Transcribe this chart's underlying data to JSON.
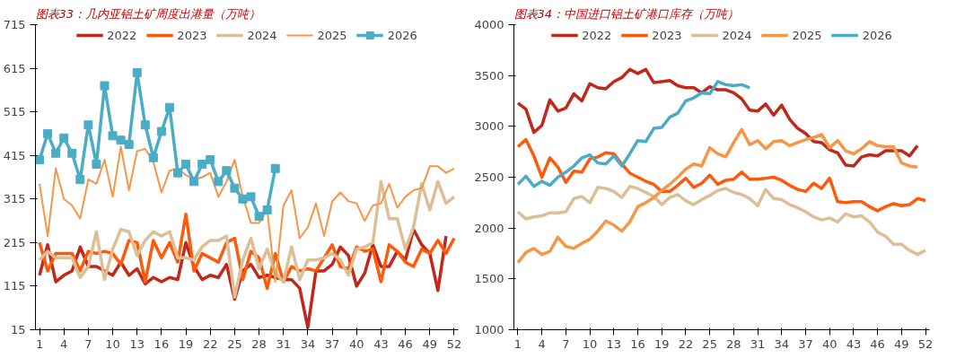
{
  "chart_data": [
    {
      "type": "line",
      "title": "图表33：几内亚铝土矿周度出港量（万吨）",
      "x": [
        1,
        2,
        3,
        4,
        5,
        6,
        7,
        8,
        9,
        10,
        11,
        12,
        13,
        14,
        15,
        16,
        17,
        18,
        19,
        20,
        21,
        22,
        23,
        24,
        25,
        26,
        27,
        28,
        29,
        30,
        31,
        32,
        33,
        34,
        35,
        36,
        37,
        38,
        39,
        40,
        41,
        42,
        43,
        44,
        45,
        46,
        47,
        48,
        49,
        50,
        51,
        52
      ],
      "xlim": [
        0.5,
        52.5
      ],
      "xticks": [
        1,
        4,
        7,
        10,
        13,
        16,
        19,
        22,
        25,
        28,
        31,
        34,
        37,
        40,
        43,
        46,
        49,
        52
      ],
      "ylim": [
        15,
        715
      ],
      "yticks": [
        15,
        115,
        215,
        315,
        415,
        515,
        615,
        715
      ],
      "legend": "top",
      "marker": "none",
      "series": [
        {
          "name": "2022",
          "color": "#c0281b",
          "values": [
            140,
            210,
            125,
            140,
            150,
            205,
            160,
            160,
            150,
            140,
            170,
            140,
            155,
            120,
            135,
            125,
            135,
            130,
            215,
            160,
            130,
            140,
            135,
            165,
            85,
            150,
            165,
            135,
            140,
            135,
            130,
            130,
            110,
            20,
            150,
            150,
            165,
            205,
            185,
            115,
            145,
            210,
            160,
            160,
            195,
            175,
            245,
            210,
            190,
            105,
            230,
            null
          ]
        },
        {
          "name": "2023",
          "color": "#ff5a0a",
          "values": [
            215,
            150,
            190,
            190,
            190,
            150,
            195,
            190,
            195,
            190,
            165,
            220,
            215,
            125,
            220,
            180,
            215,
            170,
            280,
            150,
            190,
            180,
            170,
            215,
            225,
            130,
            195,
            180,
            110,
            190,
            125,
            160,
            150,
            155,
            150,
            180,
            210,
            160,
            155,
            205,
            195,
            200,
            125,
            210,
            195,
            170,
            160,
            200,
            190,
            220,
            190,
            225
          ]
        },
        {
          "name": "2024",
          "color": "#dcbf96",
          "values": [
            175,
            195,
            180,
            180,
            180,
            135,
            160,
            240,
            130,
            200,
            245,
            240,
            185,
            220,
            240,
            230,
            240,
            180,
            180,
            175,
            205,
            220,
            220,
            230,
            90,
            175,
            225,
            155,
            200,
            145,
            125,
            205,
            130,
            175,
            175,
            180,
            190,
            175,
            140,
            200,
            205,
            215,
            355,
            270,
            270,
            200,
            250,
            350,
            290,
            355,
            305,
            320
          ]
        },
        {
          "name": "2025",
          "color": "#f79646",
          "values": [
            350,
            230,
            385,
            315,
            300,
            270,
            360,
            350,
            405,
            320,
            435,
            335,
            425,
            430,
            400,
            330,
            380,
            385,
            370,
            360,
            365,
            375,
            320,
            355,
            405,
            320,
            260,
            260,
            290,
            125,
            300,
            335,
            225,
            250,
            305,
            230,
            310,
            330,
            310,
            305,
            265,
            300,
            305,
            350,
            295,
            320,
            335,
            340,
            390,
            390,
            375,
            385
          ]
        },
        {
          "name": "2026",
          "color": "#4bacc6",
          "marker": "square",
          "values": [
            405,
            465,
            420,
            455,
            420,
            360,
            485,
            395,
            575,
            460,
            450,
            440,
            605,
            485,
            410,
            470,
            525,
            375,
            395,
            355,
            395,
            405,
            355,
            380,
            340,
            315,
            320,
            275,
            290,
            385,
            null,
            null,
            null,
            null,
            null,
            null,
            null,
            null,
            null,
            null,
            null,
            null,
            null,
            null,
            null,
            null,
            null,
            null,
            null,
            null,
            null,
            null
          ]
        }
      ]
    },
    {
      "type": "line",
      "title": "图表34：中国进口铝土矿港口库存（万吨）",
      "x": [
        1,
        2,
        3,
        4,
        5,
        6,
        7,
        8,
        9,
        10,
        11,
        12,
        13,
        14,
        15,
        16,
        17,
        18,
        19,
        20,
        21,
        22,
        23,
        24,
        25,
        26,
        27,
        28,
        29,
        30,
        31,
        32,
        33,
        34,
        35,
        36,
        37,
        38,
        39,
        40,
        41,
        42,
        43,
        44,
        45,
        46,
        47,
        48,
        49,
        50,
        51,
        52
      ],
      "xlim": [
        0.5,
        52.5
      ],
      "xticks": [
        1,
        4,
        7,
        10,
        13,
        16,
        19,
        22,
        25,
        28,
        31,
        34,
        37,
        40,
        43,
        46,
        49,
        52
      ],
      "ylim": [
        1000,
        4000
      ],
      "yticks": [
        1000,
        1500,
        2000,
        2500,
        3000,
        3500,
        4000
      ],
      "legend": "top",
      "marker": "none",
      "series": [
        {
          "name": "2022",
          "color": "#c0281b",
          "values": [
            3230,
            3170,
            2940,
            3010,
            3260,
            3150,
            3180,
            3320,
            3250,
            3420,
            3380,
            3370,
            3440,
            3480,
            3560,
            3520,
            3560,
            3430,
            3440,
            3450,
            3400,
            3380,
            3380,
            3330,
            3390,
            3360,
            3360,
            3330,
            3270,
            3160,
            3150,
            3220,
            3110,
            3210,
            3070,
            2980,
            2930,
            2850,
            2840,
            2770,
            2740,
            2620,
            2610,
            2700,
            2720,
            2710,
            2760,
            2760,
            2760,
            2710,
            2810,
            null
          ]
        },
        {
          "name": "2023",
          "color": "#ff5a0a",
          "values": [
            2800,
            2870,
            2710,
            2500,
            2690,
            2600,
            2450,
            2560,
            2550,
            2680,
            2700,
            2740,
            2730,
            2630,
            2540,
            2500,
            2460,
            2430,
            2360,
            2360,
            2420,
            2490,
            2400,
            2440,
            2520,
            2430,
            2470,
            2480,
            2550,
            2480,
            2480,
            2490,
            2500,
            2470,
            2420,
            2380,
            2360,
            2440,
            2390,
            2490,
            2260,
            2250,
            2260,
            2260,
            2210,
            2170,
            2210,
            2240,
            2220,
            2230,
            2290,
            2270
          ]
        },
        {
          "name": "2024",
          "color": "#dcbf96",
          "values": [
            2160,
            2090,
            2110,
            2120,
            2150,
            2150,
            2160,
            2290,
            2310,
            2250,
            2400,
            2390,
            2360,
            2300,
            2410,
            2390,
            2350,
            2310,
            2230,
            2300,
            2330,
            2270,
            2230,
            2280,
            2320,
            2370,
            2390,
            2350,
            2330,
            2290,
            2220,
            2380,
            2290,
            2280,
            2230,
            2200,
            2160,
            2110,
            2080,
            2100,
            2060,
            2140,
            2110,
            2120,
            2060,
            1960,
            1920,
            1840,
            1840,
            1780,
            1740,
            1780
          ]
        },
        {
          "name": "2025",
          "color": "#f79646",
          "values": [
            1660,
            1760,
            1800,
            1740,
            1770,
            1910,
            1820,
            1800,
            1850,
            1890,
            1970,
            2070,
            2030,
            1970,
            2060,
            2210,
            2250,
            2300,
            2370,
            2430,
            2500,
            2580,
            2630,
            2610,
            2790,
            2730,
            2700,
            2840,
            2970,
            2820,
            2860,
            2780,
            2850,
            2860,
            2810,
            2840,
            2870,
            2890,
            2920,
            2790,
            2860,
            2760,
            2730,
            2780,
            2850,
            2810,
            2800,
            2800,
            2640,
            2610,
            2600,
            null
          ]
        },
        {
          "name": "2026",
          "color": "#4bacc6",
          "values": [
            2430,
            2510,
            2410,
            2460,
            2420,
            2500,
            2550,
            2610,
            2690,
            2720,
            2640,
            2630,
            2710,
            2610,
            2730,
            2860,
            2850,
            2980,
            2990,
            3090,
            3130,
            3250,
            3280,
            3330,
            3320,
            3440,
            3410,
            3400,
            3410,
            3380,
            null,
            null,
            null,
            null,
            null,
            null,
            null,
            null,
            null,
            null,
            null,
            null,
            null,
            null,
            null,
            null,
            null,
            null,
            null,
            null,
            null,
            null
          ]
        }
      ]
    }
  ]
}
